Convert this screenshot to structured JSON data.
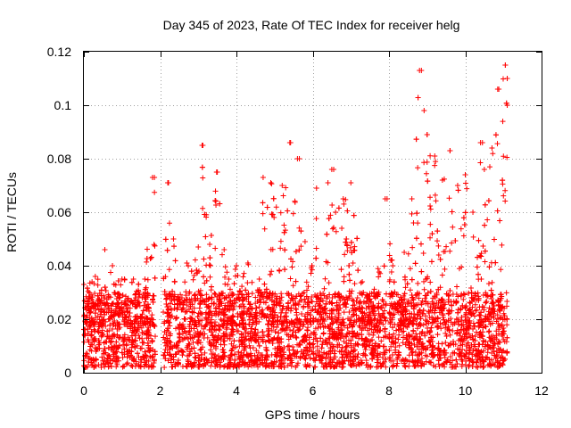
{
  "chart_data": {
    "type": "scatter",
    "title": "Day 345 of 2023, Rate Of TEC Index for receiver helg",
    "xlabel": "GPS time / hours",
    "ylabel": "ROTI / TECUs",
    "xlim": [
      0,
      12
    ],
    "ylim": [
      0,
      0.12
    ],
    "xticks": [
      0,
      2,
      4,
      6,
      8,
      10,
      12
    ],
    "xtick_labels": [
      "0",
      "2",
      "4",
      "6",
      "8",
      "10",
      "12"
    ],
    "yticks": [
      0,
      0.02,
      0.04,
      0.06,
      0.08,
      0.1,
      0.12
    ],
    "ytick_labels": [
      "0",
      "0.02",
      "0.04",
      "0.06",
      "0.08",
      "0.1",
      "0.12"
    ],
    "grid": true,
    "marker": "+",
    "marker_color": "#ff0000",
    "series": [
      {
        "name": "ROTI",
        "data_extent": {
          "x": [
            0,
            11.1
          ],
          "y": [
            0,
            0.115
          ]
        },
        "dense_band": {
          "x_range": [
            0,
            11.1
          ],
          "typical_min": 0.002,
          "typical_max": 0.03,
          "gaps_hours": [
            [
              1.88,
              2.08
            ],
            [
              7.93,
              8.0
            ]
          ]
        },
        "envelope": [
          [
            0.0,
            0.033
          ],
          [
            0.3,
            0.036
          ],
          [
            0.55,
            0.046
          ],
          [
            0.75,
            0.04
          ],
          [
            1.0,
            0.035
          ],
          [
            1.3,
            0.035
          ],
          [
            1.6,
            0.035
          ],
          [
            1.8,
            0.073
          ],
          [
            2.2,
            0.071
          ],
          [
            2.35,
            0.05
          ],
          [
            2.7,
            0.041
          ],
          [
            3.0,
            0.047
          ],
          [
            3.1,
            0.085
          ],
          [
            3.3,
            0.048
          ],
          [
            3.5,
            0.075
          ],
          [
            3.8,
            0.035
          ],
          [
            4.0,
            0.04
          ],
          [
            4.3,
            0.041
          ],
          [
            4.6,
            0.035
          ],
          [
            4.7,
            0.073
          ],
          [
            4.9,
            0.071
          ],
          [
            5.2,
            0.07
          ],
          [
            5.4,
            0.086
          ],
          [
            5.6,
            0.08
          ],
          [
            5.8,
            0.049
          ],
          [
            6.1,
            0.069
          ],
          [
            6.4,
            0.071
          ],
          [
            6.5,
            0.076
          ],
          [
            6.6,
            0.06
          ],
          [
            6.8,
            0.065
          ],
          [
            7.0,
            0.071
          ],
          [
            7.3,
            0.034
          ],
          [
            7.6,
            0.03
          ],
          [
            7.9,
            0.065
          ],
          [
            8.1,
            0.04
          ],
          [
            8.4,
            0.045
          ],
          [
            8.6,
            0.065
          ],
          [
            8.8,
            0.113
          ],
          [
            9.0,
            0.089
          ],
          [
            9.2,
            0.081
          ],
          [
            9.4,
            0.072
          ],
          [
            9.6,
            0.083
          ],
          [
            9.8,
            0.07
          ],
          [
            10.0,
            0.074
          ],
          [
            10.2,
            0.06
          ],
          [
            10.4,
            0.086
          ],
          [
            10.5,
            0.076
          ],
          [
            10.7,
            0.084
          ],
          [
            10.85,
            0.106
          ],
          [
            11.05,
            0.115
          ],
          [
            11.1,
            0.11
          ]
        ],
        "sample_points": [
          [
            1.85,
            0.073
          ],
          [
            2.22,
            0.071
          ],
          [
            3.12,
            0.085
          ],
          [
            3.48,
            0.075
          ],
          [
            5.42,
            0.086
          ],
          [
            5.65,
            0.08
          ],
          [
            6.55,
            0.076
          ],
          [
            7.95,
            0.065
          ],
          [
            8.85,
            0.113
          ],
          [
            8.92,
            0.098
          ],
          [
            9.0,
            0.089
          ],
          [
            9.6,
            0.083
          ],
          [
            10.45,
            0.086
          ],
          [
            10.88,
            0.106
          ],
          [
            11.05,
            0.115
          ],
          [
            11.1,
            0.11
          ],
          [
            11.1,
            0.1
          ]
        ]
      }
    ]
  }
}
